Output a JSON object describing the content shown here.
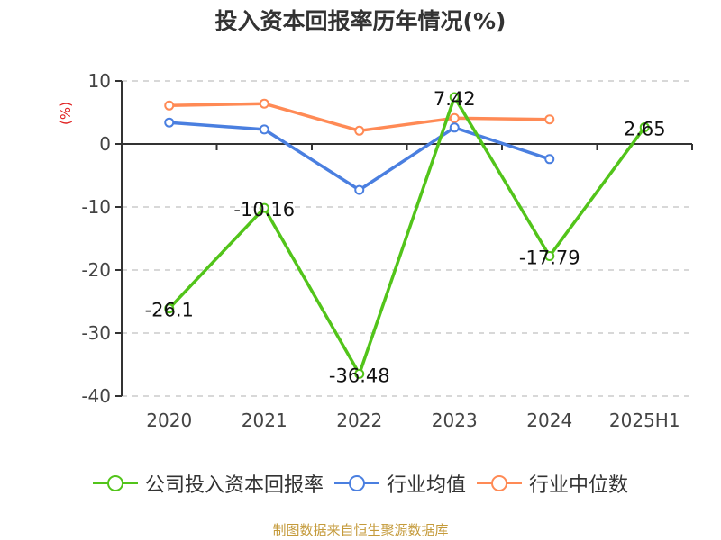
{
  "title": "投入资本回报率历年情况(%)",
  "source": "制图数据来自恒生聚源数据库",
  "legend": [
    {
      "label": "公司投入资本回报率",
      "color": "#52c41a"
    },
    {
      "label": "行业均值",
      "color": "#4a7fe0"
    },
    {
      "label": "行业中位数",
      "color": "#ff8a55"
    }
  ],
  "chart_data": {
    "type": "line",
    "title": "投入资本回报率历年情况(%)",
    "xlabel": "",
    "ylabel": "(%)",
    "ylim": [
      -40,
      10
    ],
    "yticks": [
      10,
      0,
      -10,
      -20,
      -30,
      -40
    ],
    "grid": true,
    "legend_position": "bottom",
    "categories": [
      "2020",
      "2021",
      "2022",
      "2023",
      "2024",
      "2025H1"
    ],
    "series": [
      {
        "name": "公司投入资本回报率",
        "color": "#52c41a",
        "values": [
          -26.1,
          -10.16,
          -36.48,
          7.42,
          -17.79,
          2.65
        ],
        "labels": [
          "-26.1",
          "-10.16",
          "-36.48",
          "7.42",
          "-17.79",
          "2.65"
        ]
      },
      {
        "name": "行业均值",
        "color": "#4a7fe0",
        "values": [
          3.4,
          2.3,
          -7.3,
          2.6,
          -2.4,
          null
        ]
      },
      {
        "name": "行业中位数",
        "color": "#ff8a55",
        "values": [
          6.1,
          6.4,
          2.1,
          4.1,
          3.9,
          null
        ]
      }
    ]
  }
}
